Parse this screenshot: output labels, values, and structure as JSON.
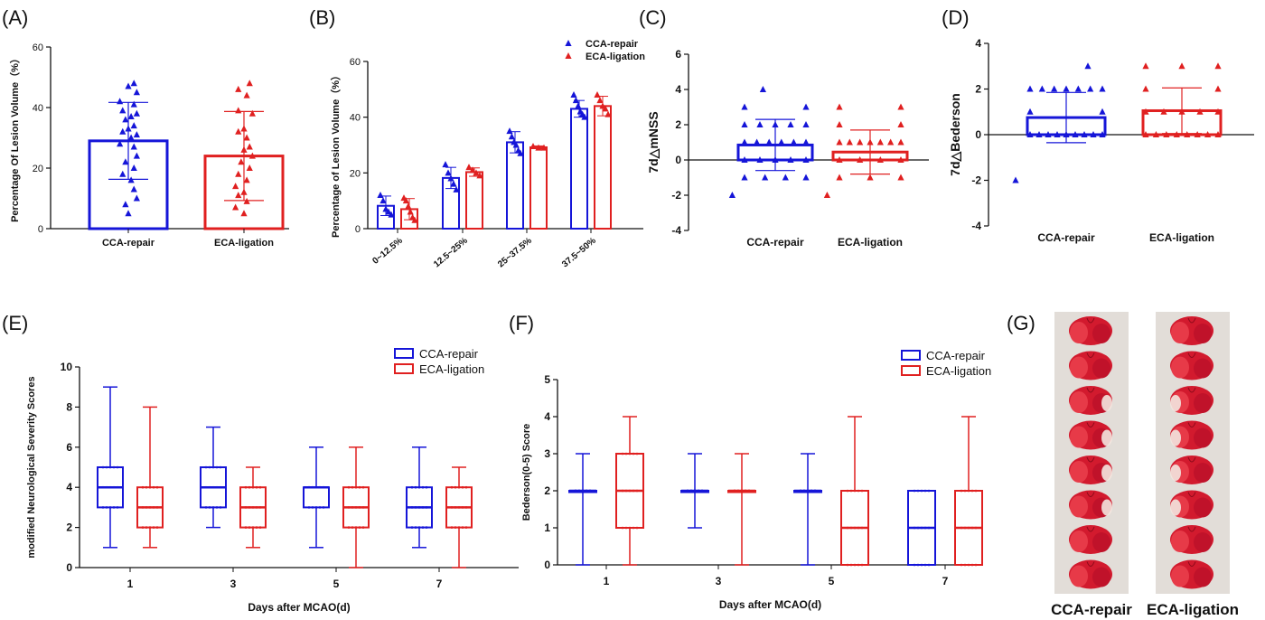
{
  "figure": {
    "colors": {
      "blue": "#1515d8",
      "red": "#e02020",
      "axis": "#111111"
    },
    "panel_labels": [
      "(A)",
      "(B)",
      "(C)",
      "(D)",
      "(E)",
      "(F)",
      "(G)"
    ]
  },
  "chart_data": [
    {
      "panel": "(A)",
      "type": "bar",
      "categories": [
        "CCA-repair",
        "ECA-ligation"
      ],
      "values": [
        29,
        24
      ],
      "errors": [
        12.7,
        14.7
      ],
      "points": [
        [
          48,
          47,
          45,
          42,
          41,
          39,
          38,
          37,
          36,
          34,
          33,
          32,
          31,
          30,
          28,
          27,
          24,
          22,
          20,
          18,
          16,
          13,
          10,
          8,
          5
        ],
        [
          48,
          46,
          44,
          39,
          38,
          33,
          32,
          30,
          27,
          26,
          24,
          22,
          20,
          18,
          16,
          14,
          12,
          11,
          9,
          7,
          5
        ]
      ],
      "ylabel": "Percentage Of Lesion Volume（%）",
      "xlabel": "",
      "ylim": [
        0,
        60
      ],
      "yticks": [
        0,
        20,
        40,
        60
      ]
    },
    {
      "panel": "(B)",
      "type": "bar",
      "categories": [
        "0~12.5%",
        "12.5~25%",
        "25~37.5%",
        "37.5~50%"
      ],
      "series": [
        {
          "name": "CCA-repair",
          "values": [
            8.2,
            18.2,
            31,
            43
          ],
          "errors": [
            3.5,
            3.8,
            3.8,
            3.0
          ],
          "points": [
            [
              12,
              10,
              7,
              6,
              5
            ],
            [
              23,
              20,
              18,
              16,
              14
            ],
            [
              35,
              33,
              31,
              30,
              28,
              27
            ],
            [
              48,
              46,
              44,
              42,
              41,
              40
            ]
          ]
        },
        {
          "name": "ECA-ligation",
          "values": [
            7,
            20.3,
            29.2,
            44
          ],
          "errors": [
            3.8,
            1.5,
            0.5,
            3.5
          ],
          "points": [
            [
              11,
              10,
              8,
              6,
              4,
              3
            ],
            [
              22,
              21,
              20,
              19
            ],
            [
              29.5,
              29,
              29
            ],
            [
              48,
              46,
              44,
              43,
              41
            ]
          ]
        }
      ],
      "ylabel": "Percentage of Lesion Volume（%）",
      "ylim": [
        0,
        60
      ],
      "yticks": [
        0,
        20,
        40,
        60
      ],
      "legend": "top-right"
    },
    {
      "panel": "(C)",
      "type": "bar",
      "categories": [
        "CCA-repair",
        "ECA-ligation"
      ],
      "values": [
        0.85,
        0.45
      ],
      "errors": [
        1.45,
        1.25
      ],
      "points": [
        [
          4,
          3,
          3,
          2,
          2,
          2,
          2,
          2,
          1,
          1,
          1,
          1,
          1,
          1,
          0,
          0,
          0,
          0,
          0,
          -1,
          -1,
          -1,
          -1,
          -2
        ],
        [
          3,
          3,
          2,
          2,
          1,
          1,
          1,
          1,
          1,
          1,
          1,
          0,
          0,
          0,
          0,
          -1,
          -1,
          -1,
          -2
        ]
      ],
      "ylabel": "7d△mNSS",
      "ylim": [
        -4,
        6
      ],
      "yticks": [
        -4,
        -2,
        0,
        2,
        4,
        6
      ]
    },
    {
      "panel": "(D)",
      "type": "bar",
      "categories": [
        "CCA-repair",
        "ECA-ligation"
      ],
      "values": [
        0.75,
        1.05
      ],
      "errors": [
        1.1,
        1.0
      ],
      "points": [
        [
          3,
          2,
          2,
          2,
          2,
          2,
          2,
          2,
          1,
          1,
          0,
          0,
          0,
          0,
          0,
          0,
          0,
          0,
          0,
          -2
        ],
        [
          3,
          3,
          3,
          2,
          2,
          1,
          1,
          1,
          1,
          1,
          0,
          0,
          0,
          0,
          0,
          0,
          0,
          0
        ]
      ],
      "ylabel": "7d△Bederson",
      "ylim": [
        -4,
        4
      ],
      "yticks": [
        -4,
        -2,
        0,
        2,
        4
      ]
    },
    {
      "panel": "(E)",
      "type": "box",
      "categories": [
        "1",
        "3",
        "5",
        "7"
      ],
      "series": [
        {
          "name": "CCA-repair",
          "boxes": [
            [
              1,
              3,
              4,
              5,
              9
            ],
            [
              2,
              3,
              4,
              5,
              7
            ],
            [
              1,
              3,
              4,
              4,
              6
            ],
            [
              1,
              2,
              3,
              4,
              6
            ]
          ]
        },
        {
          "name": "ECA-ligation",
          "boxes": [
            [
              1,
              2,
              3,
              4,
              8
            ],
            [
              1,
              2,
              3,
              4,
              5
            ],
            [
              0,
              2,
              3,
              4,
              6
            ],
            [
              0,
              2,
              3,
              4,
              5
            ]
          ]
        }
      ],
      "xlabel": "Days after MCAO(d)",
      "ylabel": "modified Neurological Severity Scores",
      "ylim": [
        0,
        10
      ],
      "yticks": [
        0,
        2,
        4,
        6,
        8,
        10
      ],
      "legend": "top-right"
    },
    {
      "panel": "(F)",
      "type": "box",
      "categories": [
        "1",
        "3",
        "5",
        "7"
      ],
      "series": [
        {
          "name": "CCA-repair",
          "boxes": [
            [
              0,
              2,
              2,
              2,
              3
            ],
            [
              1,
              2,
              2,
              2,
              3
            ],
            [
              0,
              2,
              2,
              2,
              3
            ],
            [
              0,
              0,
              1,
              2,
              2
            ]
          ]
        },
        {
          "name": "ECA-ligation",
          "boxes": [
            [
              0,
              1,
              2,
              3,
              4
            ],
            [
              0,
              2,
              2,
              2,
              3
            ],
            [
              0,
              0,
              1,
              2,
              4
            ],
            [
              0,
              0,
              1,
              2,
              4
            ]
          ]
        }
      ],
      "xlabel": "Days after MCAO(d)",
      "ylabel": "Bederson(0-5) Score",
      "ylim": [
        0,
        5
      ],
      "yticks": [
        0,
        1,
        2,
        3,
        4,
        5
      ],
      "legend": "top-right"
    }
  ],
  "photo": {
    "panel": "(G)",
    "columns": [
      "CCA-repair",
      "ECA-ligation"
    ],
    "slices_per_column": 8
  }
}
